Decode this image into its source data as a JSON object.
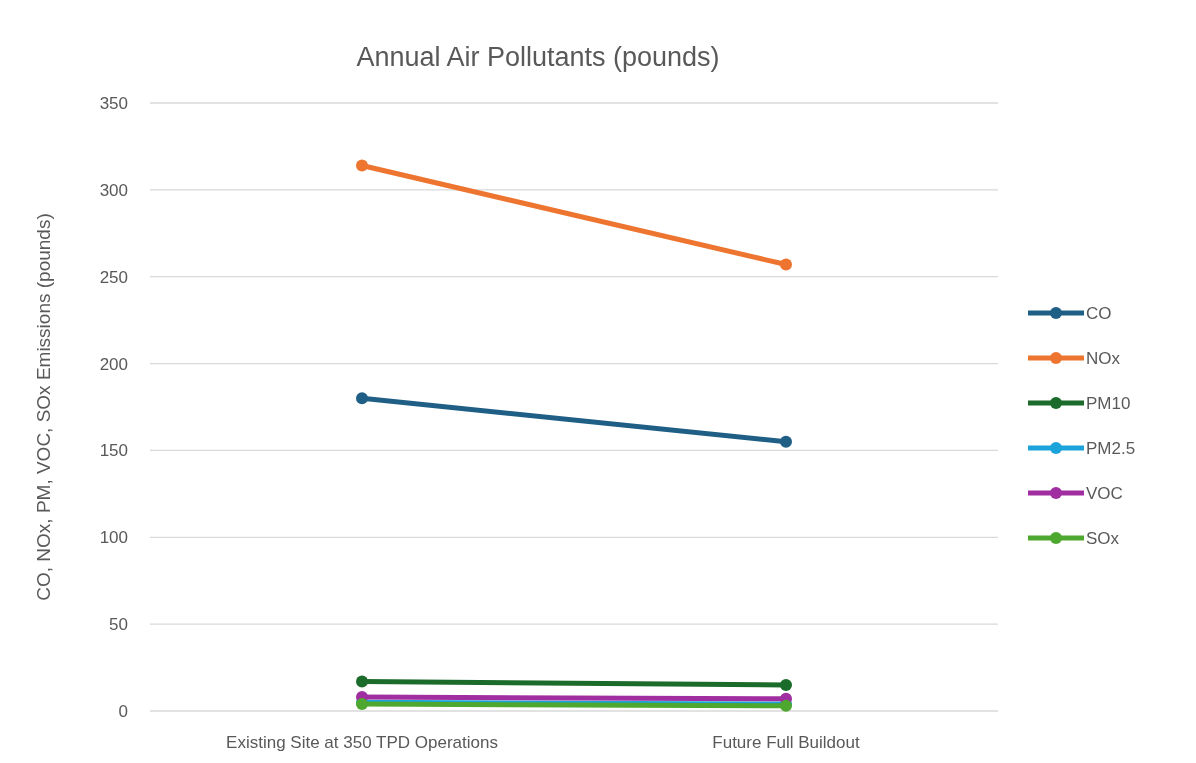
{
  "chart_data": {
    "type": "line",
    "title": "Annual Air Pollutants (pounds)",
    "ylabel": "CO, NOx, PM, VOC, SOx Emissions (pounds)",
    "categories": [
      "Existing Site at 350 TPD Operations",
      "Future Full Buildout"
    ],
    "series": [
      {
        "name": "CO",
        "color": "#1f5f86",
        "values": [
          180,
          155
        ]
      },
      {
        "name": "NOx",
        "color": "#ed7530",
        "values": [
          314,
          257
        ]
      },
      {
        "name": "PM10",
        "color": "#1b6b2a",
        "values": [
          17,
          15
        ]
      },
      {
        "name": "PM2.5",
        "color": "#1ba3dc",
        "values": [
          5,
          4
        ]
      },
      {
        "name": "VOC",
        "color": "#a12ea0",
        "values": [
          8,
          7
        ]
      },
      {
        "name": "SOx",
        "color": "#4ea72e",
        "values": [
          4,
          3
        ]
      }
    ],
    "ylim": [
      0,
      350
    ],
    "yticks": [
      0,
      50,
      100,
      150,
      200,
      250,
      300,
      350
    ],
    "grid": "y",
    "legend": "right",
    "marker": "circle",
    "line_style": "solid"
  }
}
